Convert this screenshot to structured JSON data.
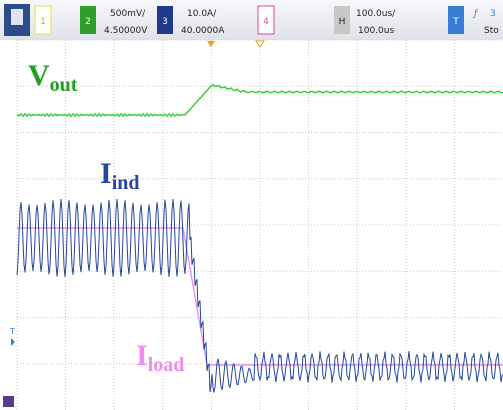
{
  "toolbar": {
    "ch1": {
      "number": "1"
    },
    "ch2": {
      "number": "2",
      "scale": "500mV/",
      "offset": "4.50000V"
    },
    "ch3": {
      "number": "3",
      "scale": "10.0A/",
      "offset": "40.0000A"
    },
    "ch4": {
      "number": "4"
    },
    "horizontal": {
      "label": "H",
      "scale": "100.0us/",
      "position": "100.0us"
    },
    "trigger": {
      "label": "T",
      "slope": "ƒ",
      "source": "3",
      "status": "Sto"
    }
  },
  "traces": {
    "vout": {
      "main": "V",
      "sub": "out"
    },
    "iind": {
      "main": "I",
      "sub": "ind"
    },
    "iload": {
      "main": "I",
      "sub": "load"
    }
  },
  "markers": {
    "trigger_level": "T"
  }
}
